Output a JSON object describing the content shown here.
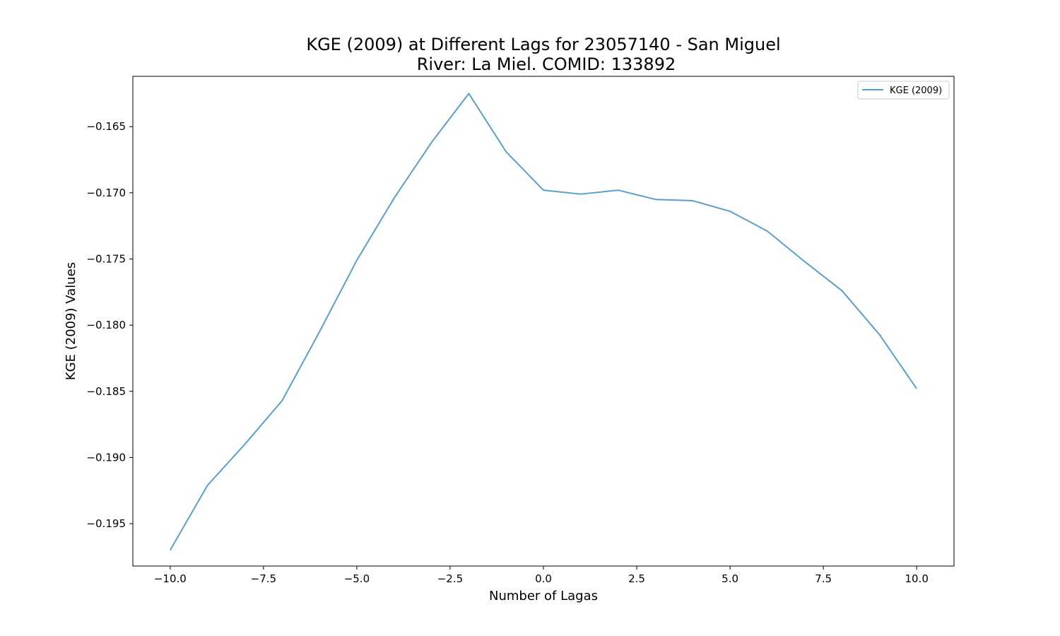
{
  "chart_data": {
    "type": "line",
    "title_line1": "KGE (2009) at Different Lags for 23057140 - San Miguel",
    "title_line2": "River: La Miel. COMID: 133892",
    "xlabel": "Number of Lagas",
    "ylabel": "KGE (2009) Values",
    "xlim": [
      -11,
      11
    ],
    "ylim": [
      -0.1982,
      -0.1612
    ],
    "xticks": [
      -10.0,
      -7.5,
      -5.0,
      -2.5,
      0.0,
      2.5,
      5.0,
      7.5,
      10.0
    ],
    "xtick_labels": [
      "−10.0",
      "−7.5",
      "−5.0",
      "−2.5",
      "0.0",
      "2.5",
      "5.0",
      "7.5",
      "10.0"
    ],
    "yticks": [
      -0.165,
      -0.17,
      -0.175,
      -0.18,
      -0.185,
      -0.19,
      -0.195
    ],
    "ytick_labels": [
      "−0.165",
      "−0.170",
      "−0.175",
      "−0.180",
      "−0.185",
      "−0.190",
      "−0.195"
    ],
    "grid": false,
    "legend_position": "top-right",
    "series": [
      {
        "name": "KGE (2009)",
        "color": "#5b9fc9",
        "x": [
          -10,
          -9,
          -8,
          -7,
          -6,
          -5,
          -4,
          -3,
          -2,
          -1,
          0,
          1,
          2,
          3,
          4,
          5,
          6,
          7,
          8,
          9,
          10
        ],
        "y": [
          -0.197,
          -0.1921,
          -0.189,
          -0.1857,
          -0.1805,
          -0.1751,
          -0.1704,
          -0.1662,
          -0.1625,
          -0.1669,
          -0.1698,
          -0.1701,
          -0.1698,
          -0.1705,
          -0.1706,
          -0.1714,
          -0.1729,
          -0.1752,
          -0.1774,
          -0.1807,
          -0.1848
        ]
      }
    ]
  }
}
